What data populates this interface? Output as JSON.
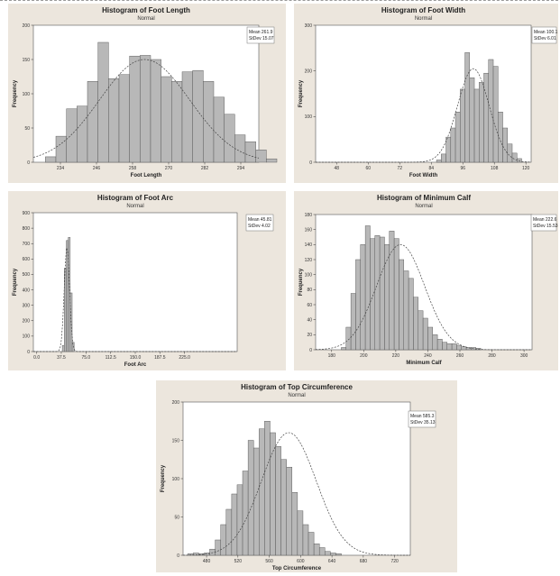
{
  "chart_data": [
    {
      "type": "bar",
      "title": "Histogram of Foot Length",
      "subtitle": "Normal",
      "xlabel": "Foot Length",
      "ylabel": "Frequency",
      "xlim": [
        225,
        300
      ],
      "ylim": [
        0,
        200
      ],
      "xticks": [
        234,
        246,
        258,
        270,
        282,
        294
      ],
      "yticks": [
        0,
        50,
        100,
        150,
        200
      ],
      "bin_width": 3.5,
      "bin_start": 229,
      "values": [
        8,
        38,
        78,
        82,
        118,
        175,
        122,
        128,
        155,
        156,
        150,
        125,
        118,
        132,
        134,
        118,
        95,
        70,
        40,
        30,
        18,
        5
      ],
      "curve": {
        "mean": 262,
        "sd": 15,
        "peak": 150
      },
      "legend": [
        "Mean 261.9",
        "StDev 15.07"
      ]
    },
    {
      "type": "bar",
      "title": "Histogram of Foot Width",
      "subtitle": "Normal",
      "xlabel": "Foot Width",
      "ylabel": "Frequency",
      "xlim": [
        40,
        122
      ],
      "ylim": [
        0,
        300
      ],
      "xticks": [
        48,
        60,
        72,
        84,
        96,
        108,
        120
      ],
      "yticks": [
        0,
        100,
        200,
        300
      ],
      "bin_width": 1.8,
      "bin_start": 86,
      "values": [
        5,
        18,
        55,
        75,
        110,
        160,
        240,
        185,
        160,
        175,
        195,
        225,
        210,
        110,
        75,
        40,
        20,
        8
      ],
      "curve": {
        "mean": 100,
        "sd": 6,
        "peak": 205
      },
      "legend": [
        "Mean 100.1",
        "StDev 6.01"
      ]
    },
    {
      "type": "bar",
      "title": "Histogram of Foot Arc",
      "subtitle": "Normal",
      "xlabel": "Foot Arc",
      "ylabel": "Frequency",
      "xlim": [
        -5,
        305
      ],
      "ylim": [
        0,
        900
      ],
      "xticks": [
        0.0,
        37.5,
        75.0,
        112.5,
        150.0,
        187.5,
        225.0
      ],
      "yticks": [
        0,
        100,
        200,
        300,
        400,
        500,
        600,
        700,
        800,
        900
      ],
      "bin_width": 3,
      "bin_start": 39,
      "values": [
        40,
        540,
        720,
        740,
        380,
        60
      ],
      "curve": {
        "mean": 46,
        "sd": 4,
        "peak": 680
      },
      "legend": [
        "Mean 45.81",
        "StDev 4.02"
      ]
    },
    {
      "type": "bar",
      "title": "Histogram of Minimum Calf",
      "subtitle": "Normal",
      "xlabel": "Minimum Calf",
      "ylabel": "Frequency",
      "xlim": [
        170,
        305
      ],
      "ylim": [
        0,
        180
      ],
      "xticks": [
        180,
        200,
        220,
        240,
        260,
        280,
        300
      ],
      "yticks": [
        0,
        20,
        40,
        60,
        80,
        100,
        120,
        140,
        160,
        180
      ],
      "bin_width": 3,
      "bin_start": 186,
      "values": [
        3,
        30,
        75,
        120,
        140,
        165,
        148,
        152,
        150,
        140,
        158,
        148,
        120,
        105,
        95,
        70,
        52,
        42,
        30,
        20,
        14,
        10,
        8,
        8,
        6,
        4,
        3,
        3,
        2
      ],
      "curve": {
        "mean": 223,
        "sd": 15,
        "peak": 140
      },
      "legend": [
        "Mean 222.6",
        "StDev 15.53"
      ]
    },
    {
      "type": "bar",
      "title": "Histogram of Top Circumference",
      "subtitle": "Normal",
      "xlabel": "Top Circumference",
      "ylabel": "Frequency",
      "xlim": [
        450,
        740
      ],
      "ylim": [
        0,
        200
      ],
      "xticks": [
        480,
        520,
        560,
        600,
        640,
        680,
        720
      ],
      "yticks": [
        0,
        50,
        100,
        150,
        200
      ],
      "bin_width": 7,
      "bin_start": 456,
      "values": [
        2,
        3,
        2,
        3,
        8,
        20,
        40,
        60,
        80,
        92,
        110,
        150,
        140,
        165,
        175,
        160,
        142,
        125,
        115,
        82,
        58,
        40,
        30,
        15,
        10,
        5,
        3,
        2
      ],
      "curve": {
        "mean": 585,
        "sd": 35,
        "peak": 160
      },
      "legend": [
        "Mean 585.3",
        "StDev 35.13"
      ]
    }
  ]
}
